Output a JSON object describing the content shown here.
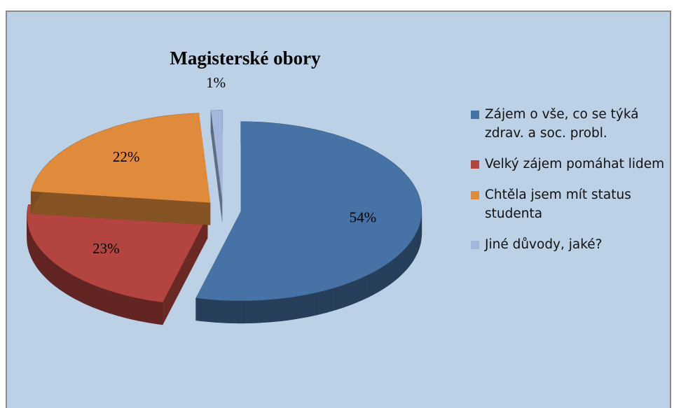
{
  "chart_data": {
    "type": "pie",
    "title": "Magisterské obory",
    "categories": [
      "Zájem o vše, co se týká zdrav. a soc. probl.",
      "Velký zájem pomáhat lidem",
      "Chtěla jsem mít status studenta",
      "Jiné důvody, jaké?"
    ],
    "values": [
      54,
      23,
      22,
      1
    ],
    "value_labels": [
      "54%",
      "23%",
      "22%",
      "1%"
    ],
    "colors": [
      "#4672a6",
      "#b3443f",
      "#e08a3c",
      "#a4b6dc"
    ],
    "legend": "right"
  }
}
